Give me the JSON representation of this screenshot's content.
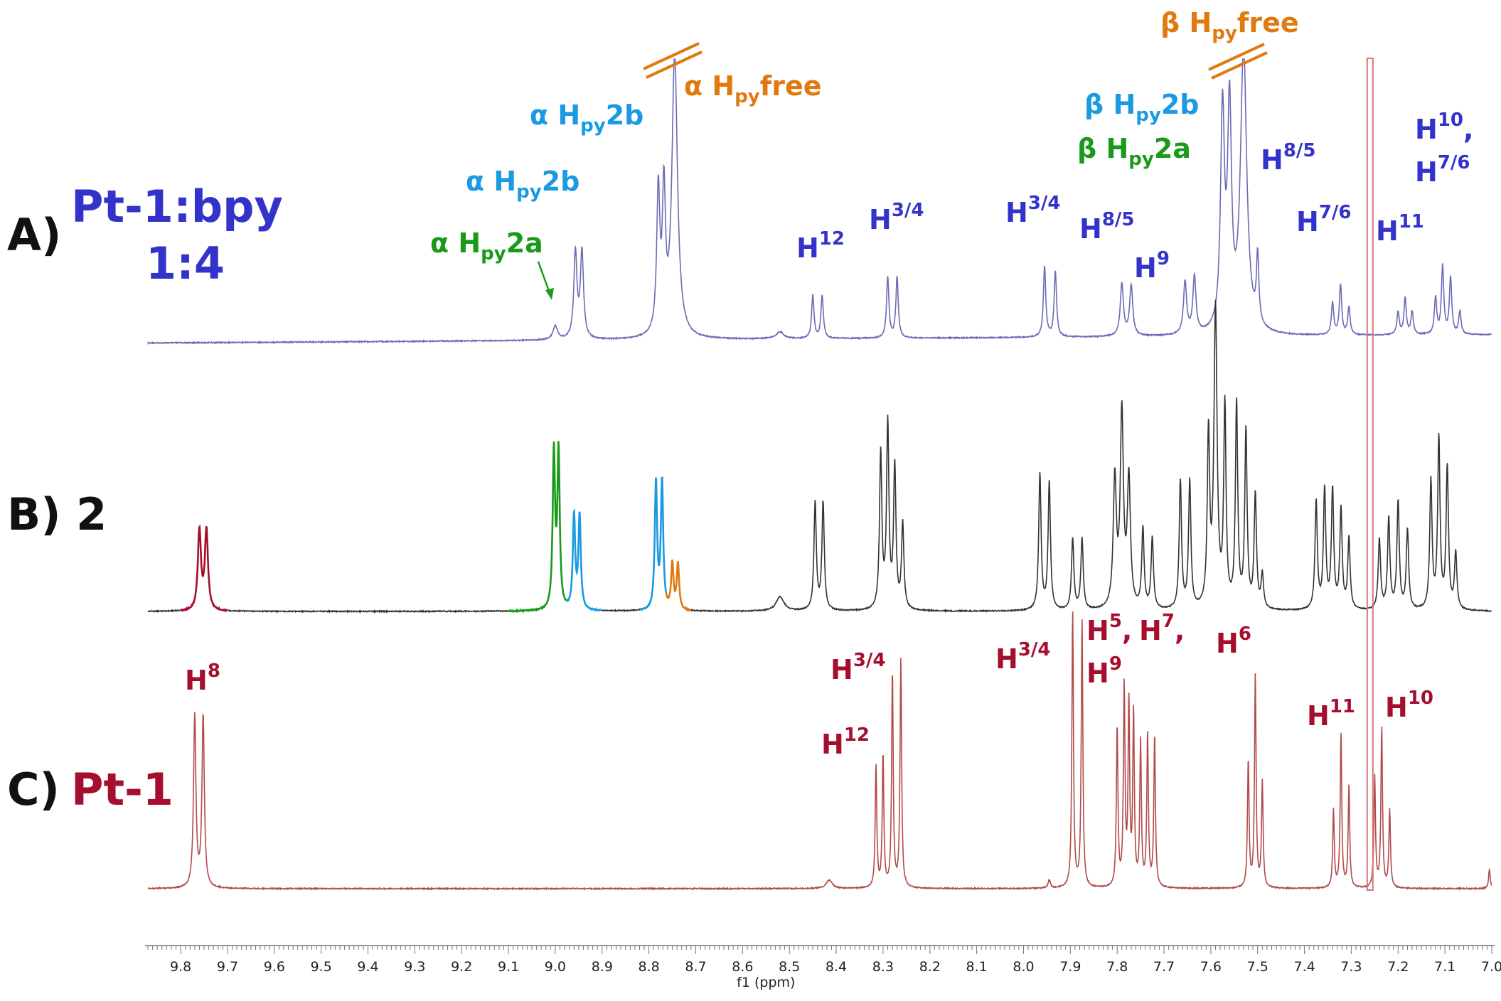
{
  "chart_data": {
    "type": "line",
    "xlabel": "f1 (ppm)",
    "x_reversed": true,
    "xlim": [
      9.87,
      7.0
    ],
    "xticks": [
      9.8,
      9.7,
      9.6,
      9.5,
      9.4,
      9.3,
      9.2,
      9.1,
      9.0,
      8.9,
      8.8,
      8.7,
      8.6,
      8.5,
      8.4,
      8.3,
      8.2,
      8.1,
      8.0,
      7.9,
      7.8,
      7.7,
      7.6,
      7.5,
      7.4,
      7.3,
      7.2,
      7.1,
      7.0
    ],
    "xtick_labels": [
      "9.8",
      "9.7",
      "9.6",
      "9.5",
      "9.4",
      "9.3",
      "9.2",
      "9.1",
      "9.0",
      "8.9",
      "8.8",
      "8.7",
      "8.6",
      "8.5",
      "8.4",
      "8.3",
      "8.2",
      "8.1",
      "8.0",
      "7.9",
      "7.8",
      "7.7",
      "7.6",
      "7.5",
      "7.4",
      "7.3",
      "7.2",
      "7.1",
      "7.0"
    ],
    "colors": {
      "blue": "#3333cc",
      "spectrum_a": "#6a6ab8",
      "spectrum_b": "#333333",
      "spectrum_c": "#b24a4a",
      "dark_red": "#a50e2d",
      "green": "#1a9a1a",
      "light_blue": "#1a9ae0",
      "orange": "#e07a10",
      "solvent": "#d27878"
    },
    "series": [
      {
        "panel": "A",
        "label": "A)",
        "name_line1": "Pt-1:bpy",
        "name_line2": "1:4",
        "peaks": [
          {
            "ppm": 9.0,
            "h": 0.06,
            "w": 0.006
          },
          {
            "ppm": 8.957,
            "h": 0.38,
            "w": 0.004
          },
          {
            "ppm": 8.943,
            "h": 0.38,
            "w": 0.004
          },
          {
            "ppm": 8.78,
            "h": 0.62,
            "w": 0.004
          },
          {
            "ppm": 8.768,
            "h": 0.6,
            "w": 0.004
          },
          {
            "ppm": 8.745,
            "h": 1.25,
            "w": 0.007
          },
          {
            "ppm": 8.52,
            "h": 0.03,
            "w": 0.01
          },
          {
            "ppm": 8.45,
            "h": 0.19,
            "w": 0.003
          },
          {
            "ppm": 8.43,
            "h": 0.19,
            "w": 0.003
          },
          {
            "ppm": 8.29,
            "h": 0.27,
            "w": 0.003
          },
          {
            "ppm": 8.27,
            "h": 0.27,
            "w": 0.003
          },
          {
            "ppm": 7.955,
            "h": 0.31,
            "w": 0.003
          },
          {
            "ppm": 7.932,
            "h": 0.29,
            "w": 0.003
          },
          {
            "ppm": 7.79,
            "h": 0.23,
            "w": 0.004
          },
          {
            "ppm": 7.77,
            "h": 0.22,
            "w": 0.004
          },
          {
            "ppm": 7.655,
            "h": 0.23,
            "w": 0.004
          },
          {
            "ppm": 7.635,
            "h": 0.25,
            "w": 0.004
          },
          {
            "ppm": 7.575,
            "h": 0.95,
            "w": 0.005
          },
          {
            "ppm": 7.56,
            "h": 0.95,
            "w": 0.005
          },
          {
            "ppm": 7.53,
            "h": 1.25,
            "w": 0.008
          },
          {
            "ppm": 7.5,
            "h": 0.3,
            "w": 0.003
          },
          {
            "ppm": 7.34,
            "h": 0.14,
            "w": 0.003
          },
          {
            "ppm": 7.323,
            "h": 0.22,
            "w": 0.003
          },
          {
            "ppm": 7.305,
            "h": 0.12,
            "w": 0.003
          },
          {
            "ppm": 7.2,
            "h": 0.1,
            "w": 0.003
          },
          {
            "ppm": 7.185,
            "h": 0.16,
            "w": 0.003
          },
          {
            "ppm": 7.17,
            "h": 0.1,
            "w": 0.003
          },
          {
            "ppm": 7.12,
            "h": 0.16,
            "w": 0.003
          },
          {
            "ppm": 7.105,
            "h": 0.3,
            "w": 0.003
          },
          {
            "ppm": 7.088,
            "h": 0.25,
            "w": 0.003
          },
          {
            "ppm": 7.068,
            "h": 0.1,
            "w": 0.003
          }
        ],
        "annotations": [
          {
            "greek": "α",
            "main": "H",
            "sub": "py",
            "tail": "2b",
            "color": "#1a9ae0"
          },
          {
            "greek": "α",
            "main": "H",
            "sub": "py",
            "tail": "2b",
            "color": "#1a9ae0"
          },
          {
            "greek": "α",
            "main": "H",
            "sub": "py",
            "tail": "2a",
            "color": "#1a9a1a"
          },
          {
            "greek": "α",
            "main": "H",
            "sub": "py",
            "tail": "free",
            "color": "#e07a10"
          },
          {
            "greek": "β",
            "main": "H",
            "sub": "py",
            "tail": "free",
            "color": "#e07a10"
          },
          {
            "greek": "β",
            "main": "H",
            "sub": "py",
            "tail": "2b",
            "color": "#1a9ae0"
          },
          {
            "greek": "β",
            "main": "H",
            "sub": "py",
            "tail": "2a",
            "color": "#1a9a1a"
          },
          {
            "main": "H",
            "sup": "12",
            "color": "#3333cc"
          },
          {
            "main": "H",
            "sup": "3/4",
            "color": "#3333cc"
          },
          {
            "main": "H",
            "sup": "3/4",
            "color": "#3333cc"
          },
          {
            "main": "H",
            "sup": "8/5",
            "color": "#3333cc"
          },
          {
            "main": "H",
            "sup": "9",
            "color": "#3333cc"
          },
          {
            "main": "H",
            "sup": "8/5",
            "color": "#3333cc"
          },
          {
            "main": "H",
            "sup": "7/6",
            "color": "#3333cc"
          },
          {
            "main": "H",
            "sup": "11",
            "color": "#3333cc"
          },
          {
            "main": "H",
            "sup": "10",
            "tail": ",",
            "color": "#3333cc"
          },
          {
            "main": "H",
            "sup": "7/6",
            "color": "#3333cc"
          }
        ]
      },
      {
        "panel": "B",
        "label": "B) 2",
        "peaks": [
          {
            "ppm": 9.76,
            "h": 0.28,
            "w": 0.004
          },
          {
            "ppm": 9.745,
            "h": 0.28,
            "w": 0.004
          },
          {
            "ppm": 9.003,
            "h": 0.55,
            "w": 0.003
          },
          {
            "ppm": 8.993,
            "h": 0.55,
            "w": 0.003
          },
          {
            "ppm": 8.96,
            "h": 0.33,
            "w": 0.003
          },
          {
            "ppm": 8.948,
            "h": 0.33,
            "w": 0.003
          },
          {
            "ppm": 8.785,
            "h": 0.45,
            "w": 0.003
          },
          {
            "ppm": 8.772,
            "h": 0.45,
            "w": 0.003
          },
          {
            "ppm": 8.75,
            "h": 0.16,
            "w": 0.003
          },
          {
            "ppm": 8.738,
            "h": 0.16,
            "w": 0.003
          },
          {
            "ppm": 8.52,
            "h": 0.05,
            "w": 0.01
          },
          {
            "ppm": 8.445,
            "h": 0.38,
            "w": 0.003
          },
          {
            "ppm": 8.428,
            "h": 0.38,
            "w": 0.003
          },
          {
            "ppm": 8.305,
            "h": 0.55,
            "w": 0.003
          },
          {
            "ppm": 8.29,
            "h": 0.65,
            "w": 0.003
          },
          {
            "ppm": 8.275,
            "h": 0.5,
            "w": 0.003
          },
          {
            "ppm": 8.258,
            "h": 0.3,
            "w": 0.003
          },
          {
            "ppm": 7.965,
            "h": 0.48,
            "w": 0.003
          },
          {
            "ppm": 7.945,
            "h": 0.45,
            "w": 0.003
          },
          {
            "ppm": 7.895,
            "h": 0.25,
            "w": 0.003
          },
          {
            "ppm": 7.875,
            "h": 0.25,
            "w": 0.003
          },
          {
            "ppm": 7.805,
            "h": 0.45,
            "w": 0.004
          },
          {
            "ppm": 7.79,
            "h": 0.68,
            "w": 0.004
          },
          {
            "ppm": 7.775,
            "h": 0.45,
            "w": 0.004
          },
          {
            "ppm": 7.745,
            "h": 0.28,
            "w": 0.003
          },
          {
            "ppm": 7.725,
            "h": 0.25,
            "w": 0.003
          },
          {
            "ppm": 7.665,
            "h": 0.45,
            "w": 0.003
          },
          {
            "ppm": 7.645,
            "h": 0.45,
            "w": 0.003
          },
          {
            "ppm": 7.605,
            "h": 0.6,
            "w": 0.003
          },
          {
            "ppm": 7.59,
            "h": 1.05,
            "w": 0.004
          },
          {
            "ppm": 7.57,
            "h": 0.7,
            "w": 0.003
          },
          {
            "ppm": 7.545,
            "h": 0.72,
            "w": 0.003
          },
          {
            "ppm": 7.525,
            "h": 0.62,
            "w": 0.003
          },
          {
            "ppm": 7.505,
            "h": 0.4,
            "w": 0.003
          },
          {
            "ppm": 7.49,
            "h": 0.12,
            "w": 0.003
          },
          {
            "ppm": 7.375,
            "h": 0.38,
            "w": 0.003
          },
          {
            "ppm": 7.357,
            "h": 0.42,
            "w": 0.003
          },
          {
            "ppm": 7.34,
            "h": 0.42,
            "w": 0.003
          },
          {
            "ppm": 7.322,
            "h": 0.35,
            "w": 0.003
          },
          {
            "ppm": 7.305,
            "h": 0.25,
            "w": 0.003
          },
          {
            "ppm": 7.24,
            "h": 0.25,
            "w": 0.003
          },
          {
            "ppm": 7.22,
            "h": 0.32,
            "w": 0.003
          },
          {
            "ppm": 7.2,
            "h": 0.38,
            "w": 0.003
          },
          {
            "ppm": 7.18,
            "h": 0.28,
            "w": 0.003
          },
          {
            "ppm": 7.13,
            "h": 0.45,
            "w": 0.003
          },
          {
            "ppm": 7.113,
            "h": 0.6,
            "w": 0.003
          },
          {
            "ppm": 7.095,
            "h": 0.5,
            "w": 0.003
          },
          {
            "ppm": 7.077,
            "h": 0.2,
            "w": 0.003
          }
        ],
        "colored_segments": [
          {
            "from": 9.8,
            "to": 9.7,
            "color": "#a50e2d"
          },
          {
            "from": 9.1,
            "to": 8.975,
            "color": "#1a9a1a"
          },
          {
            "from": 8.975,
            "to": 8.9,
            "color": "#1a9ae0"
          },
          {
            "from": 8.82,
            "to": 8.763,
            "color": "#1a9ae0"
          },
          {
            "from": 8.763,
            "to": 8.71,
            "color": "#e07a10"
          }
        ]
      },
      {
        "panel": "C",
        "label": "C)",
        "name": "Pt-1",
        "peaks": [
          {
            "ppm": 9.77,
            "h": 0.62,
            "w": 0.003
          },
          {
            "ppm": 9.752,
            "h": 0.62,
            "w": 0.003
          },
          {
            "ppm": 8.415,
            "h": 0.03,
            "w": 0.008
          },
          {
            "ppm": 8.315,
            "h": 0.44,
            "w": 0.002
          },
          {
            "ppm": 8.3,
            "h": 0.48,
            "w": 0.002
          },
          {
            "ppm": 8.28,
            "h": 0.78,
            "w": 0.002
          },
          {
            "ppm": 8.262,
            "h": 0.82,
            "w": 0.002
          },
          {
            "ppm": 7.945,
            "h": 0.03,
            "w": 0.003
          },
          {
            "ppm": 7.895,
            "h": 1.0,
            "w": 0.002
          },
          {
            "ppm": 7.875,
            "h": 0.97,
            "w": 0.002
          },
          {
            "ppm": 7.8,
            "h": 0.58,
            "w": 0.002
          },
          {
            "ppm": 7.785,
            "h": 0.72,
            "w": 0.002
          },
          {
            "ppm": 7.775,
            "h": 0.65,
            "w": 0.002
          },
          {
            "ppm": 7.765,
            "h": 0.62,
            "w": 0.002
          },
          {
            "ppm": 7.75,
            "h": 0.52,
            "w": 0.002
          },
          {
            "ppm": 7.735,
            "h": 0.55,
            "w": 0.002
          },
          {
            "ppm": 7.72,
            "h": 0.55,
            "w": 0.002
          },
          {
            "ppm": 7.52,
            "h": 0.46,
            "w": 0.002
          },
          {
            "ppm": 7.505,
            "h": 0.77,
            "w": 0.002
          },
          {
            "ppm": 7.49,
            "h": 0.38,
            "w": 0.002
          },
          {
            "ppm": 7.338,
            "h": 0.28,
            "w": 0.002
          },
          {
            "ppm": 7.322,
            "h": 0.55,
            "w": 0.002
          },
          {
            "ppm": 7.305,
            "h": 0.37,
            "w": 0.002
          },
          {
            "ppm": 7.25,
            "h": 0.4,
            "w": 0.002
          },
          {
            "ppm": 7.235,
            "h": 0.58,
            "w": 0.002
          },
          {
            "ppm": 7.218,
            "h": 0.28,
            "w": 0.002
          },
          {
            "ppm": 7.005,
            "h": 0.07,
            "w": 0.002
          }
        ],
        "annotations": [
          {
            "main": "H",
            "sup": "8",
            "color": "#a50e2d"
          },
          {
            "main": "H",
            "sup": "3/4",
            "color": "#a50e2d"
          },
          {
            "main": "H",
            "sup": "12",
            "color": "#a50e2d"
          },
          {
            "main": "H",
            "sup": "3/4",
            "color": "#a50e2d"
          },
          {
            "main": "H",
            "sup": "5",
            "tail": ",",
            "color": "#a50e2d"
          },
          {
            "main": "H",
            "sup": "7",
            "tail": ",",
            "color": "#a50e2d"
          },
          {
            "main": "H",
            "sup": "9",
            "color": "#a50e2d"
          },
          {
            "main": "H",
            "sup": "6",
            "color": "#a50e2d"
          },
          {
            "main": "H",
            "sup": "11",
            "color": "#a50e2d"
          },
          {
            "main": "H",
            "sup": "10",
            "color": "#a50e2d"
          }
        ]
      }
    ],
    "solvent_peak_ppm": 7.26
  }
}
